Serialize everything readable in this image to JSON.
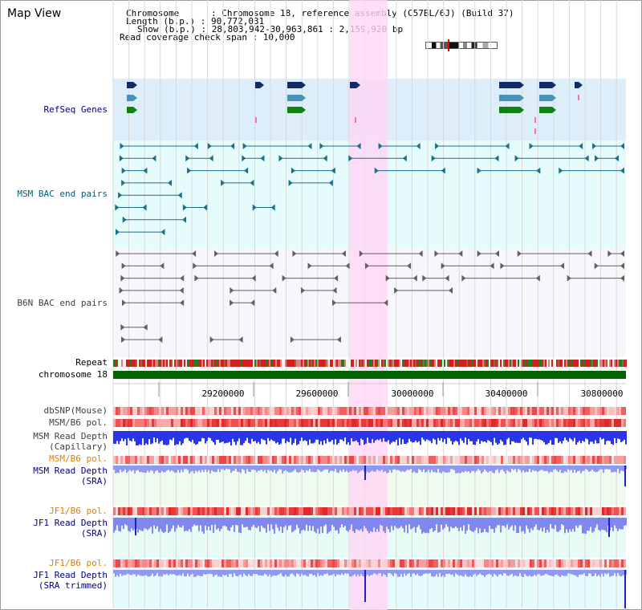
{
  "page": {
    "title": "Map View"
  },
  "header": {
    "chromosome": "Chromosome      : Chromosome 18, reference assembly (C57BL/6J) (Build 37)",
    "length": "Length (b.p.) : 90,772,031",
    "show": "Show (b.p.) : 28,803,942-30,963,861 : 2,159,920 bp",
    "coverage": "Read coverage check span : 10,000"
  },
  "tracks": {
    "refseq": "RefSeq Genes",
    "msm_bac": "MSM BAC end pairs",
    "b6n_bac": "B6N BAC end pairs",
    "repeat": "Repeat",
    "chromosome": "chromosome 18",
    "dbsnp": "dbSNP(Mouse)",
    "msm_b6_pol": "MSM/B6 pol.",
    "msm_depth_cap_1": "MSM Read Depth",
    "msm_depth_cap_2": "(Capillary)",
    "msm_b6_pol_sra": "MSM/B6 pol.",
    "msm_depth_sra_1": "MSM Read Depth",
    "msm_depth_sra_2": "(SRA)",
    "jf1_b6_pol": "JF1/B6 pol.",
    "jf1_depth_sra_1": "JF1 Read Depth",
    "jf1_depth_sra_2": "(SRA)",
    "jf1_b6_pol_trim": "JF1/B6 pol.",
    "jf1_depth_trim_1": "JF1 Read Depth",
    "jf1_depth_trim_2": "(SRA trimmed)"
  },
  "axis": {
    "ticks": [
      "29200000",
      "29600000",
      "30000000",
      "30400000",
      "30800000"
    ]
  },
  "colors": {
    "refseq_label": "#000080",
    "msm_label": "#006080",
    "b6n_label": "#404040",
    "sra_label": "#000080",
    "pol_label": "#e08000",
    "highlight": "#ffd6f5",
    "chromosome_bar": "#006400",
    "depth_blue": "#2030e0",
    "depth_lightblue": "#8890f0"
  }
}
